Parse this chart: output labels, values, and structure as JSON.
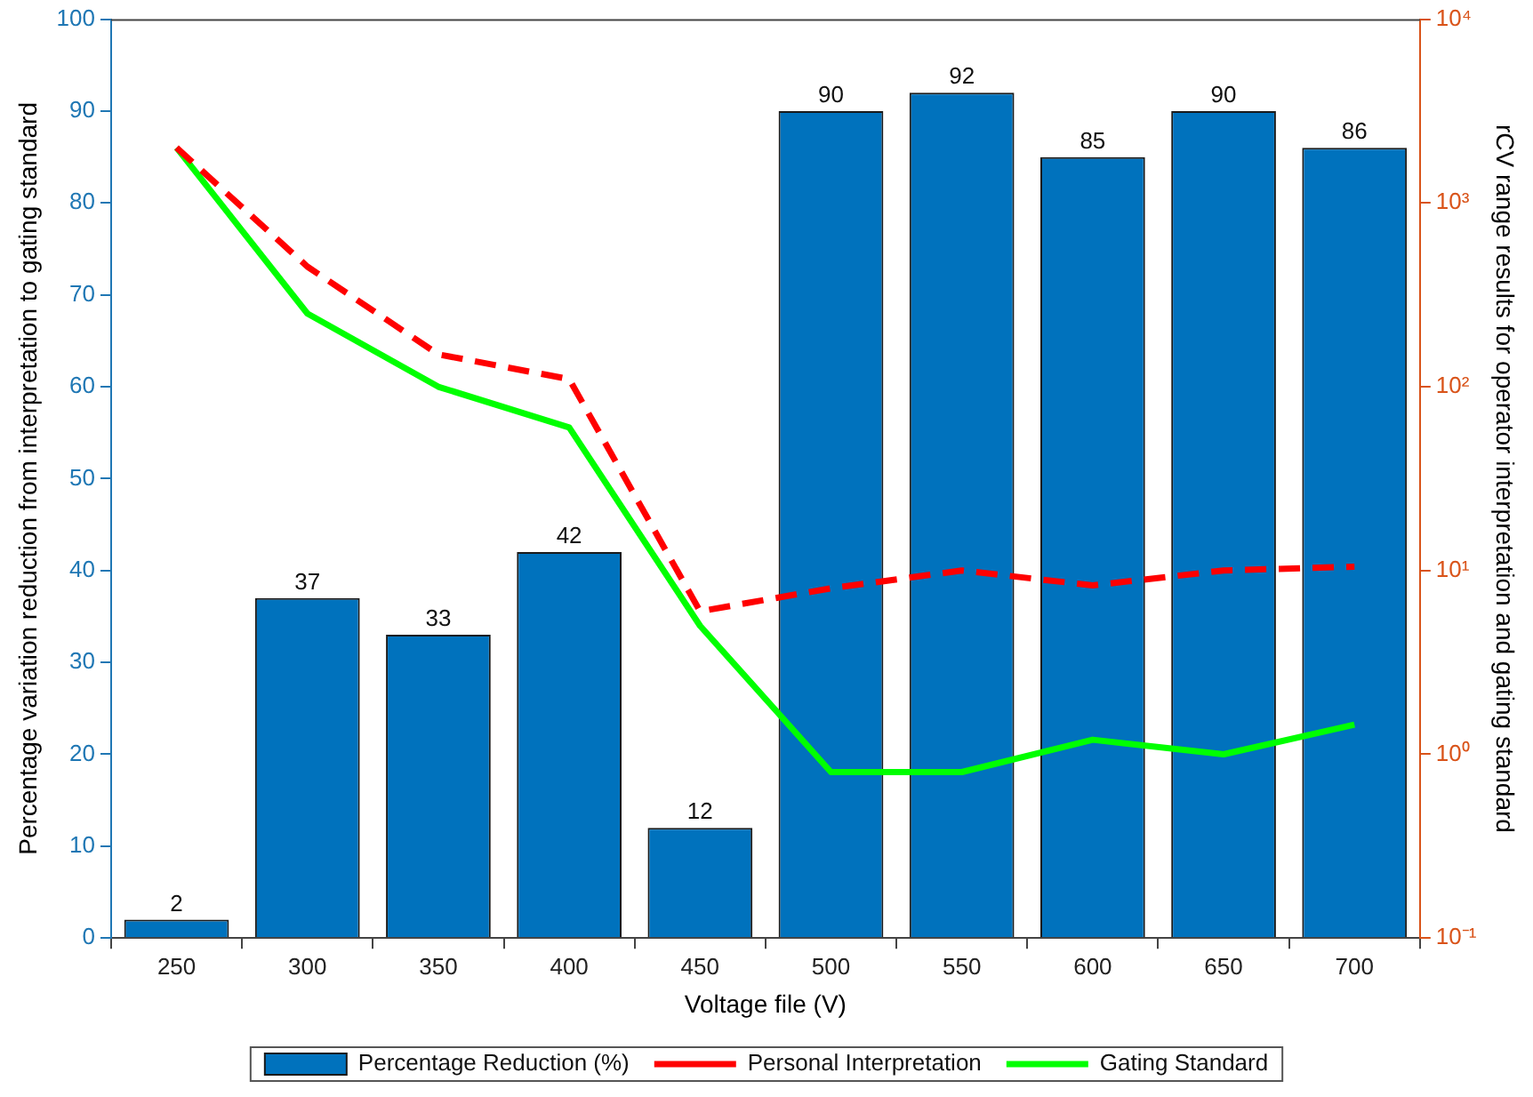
{
  "chart_data": {
    "type": "bar",
    "xlabel": "Voltage file (V)",
    "ylabel": "Percentage variation reduction from interpretation to gating standard",
    "y2label": "rCV range results for operator interpretation and gating standard",
    "categories": [
      "250",
      "300",
      "350",
      "400",
      "450",
      "500",
      "550",
      "600",
      "650",
      "700"
    ],
    "series": [
      {
        "name": "Percentage Reduction (%)",
        "color": "#0072bd",
        "values": [
          2,
          37,
          33,
          42,
          12,
          90,
          92,
          85,
          90,
          86
        ],
        "value_labels": [
          "2",
          "37",
          "33",
          "42",
          "12",
          "90",
          "92",
          "85",
          "90",
          "86"
        ]
      },
      {
        "name": "Personal Interpretation",
        "type": "line",
        "axis": "y2",
        "line_style": "dashed",
        "color": "#ff0000",
        "values": [
          2000,
          450,
          150,
          110,
          6,
          8,
          10,
          8.3,
          10,
          10.5
        ]
      },
      {
        "name": "Gating Standard",
        "type": "line",
        "axis": "y2",
        "line_style": "solid",
        "color": "#00ff00",
        "values": [
          2000,
          250,
          100,
          60,
          5,
          0.8,
          0.8,
          1.2,
          1,
          1.45
        ]
      }
    ],
    "ylim": [
      0,
      100
    ],
    "yticks": [
      0,
      10,
      20,
      30,
      40,
      50,
      60,
      70,
      80,
      90,
      100
    ],
    "log": "y2",
    "y2lim": [
      0.1,
      10000
    ],
    "y2ticks": [
      {
        "value": 0.1,
        "label": "10⁻¹"
      },
      {
        "value": 1,
        "label": "10⁰"
      },
      {
        "value": 10,
        "label": "10¹"
      },
      {
        "value": 100,
        "label": "10²"
      },
      {
        "value": 1000,
        "label": "10³"
      },
      {
        "value": 10000,
        "label": "10⁴"
      }
    ],
    "grid": false,
    "legend": "bottom",
    "marker": "none"
  }
}
